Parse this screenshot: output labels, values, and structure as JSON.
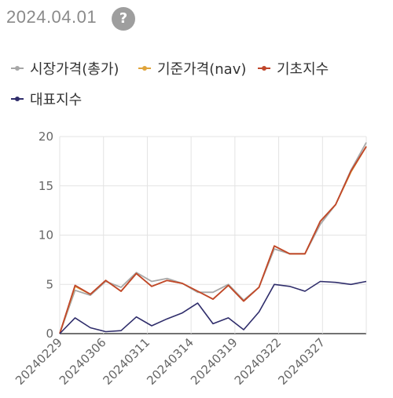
{
  "header": {
    "date": "2024.04.01",
    "help_label": "?"
  },
  "chart_data": {
    "type": "line",
    "x_ticks": [
      "20240229",
      "20240306",
      "20240311",
      "20240314",
      "20240319",
      "20240322",
      "20240327"
    ],
    "y_ticks": [
      "0",
      "5",
      "10",
      "15",
      "20"
    ],
    "ylim": [
      0,
      20
    ],
    "grid": true,
    "legend_position": "top-left",
    "series": [
      {
        "name": "시장가격(총가)",
        "color": "#a7a7a7",
        "values": [
          0,
          4.4,
          3.9,
          5.3,
          4.7,
          6.2,
          5.3,
          5.6,
          5.1,
          4.2,
          4.2,
          5.0,
          3.4,
          4.7,
          8.6,
          8.1,
          8.1,
          11.1,
          13.1,
          16.6,
          19.4
        ]
      },
      {
        "name": "기준가격(nav)",
        "color": "#e0a43a",
        "values": [
          0,
          4.8,
          4.0,
          5.4,
          4.3,
          6.1,
          4.8,
          5.4,
          5.1,
          4.3,
          3.5,
          4.9,
          3.3,
          4.7,
          8.9,
          8.1,
          8.1,
          11.4,
          13.1,
          16.4,
          19.0
        ]
      },
      {
        "name": "기초지수",
        "color": "#c0462b",
        "values": [
          0,
          4.9,
          4.0,
          5.4,
          4.3,
          6.1,
          4.8,
          5.4,
          5.1,
          4.3,
          3.5,
          4.9,
          3.3,
          4.7,
          8.9,
          8.1,
          8.1,
          11.4,
          13.1,
          16.5,
          19.0
        ]
      },
      {
        "name": "대표지수",
        "color": "#2f2d6b",
        "values": [
          0,
          1.6,
          0.6,
          0.2,
          0.3,
          1.7,
          0.8,
          1.5,
          2.1,
          3.1,
          1.0,
          1.6,
          0.4,
          2.2,
          5.0,
          4.8,
          4.3,
          5.3,
          5.2,
          5.0,
          5.3
        ]
      }
    ]
  }
}
